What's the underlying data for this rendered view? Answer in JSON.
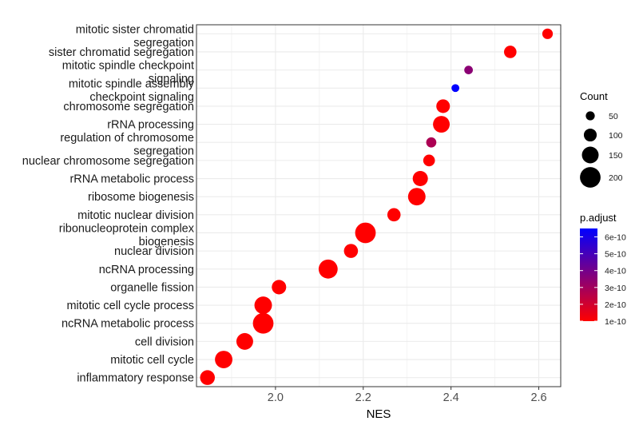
{
  "chart_data": {
    "type": "scatter",
    "xlabel": "NES",
    "ylabel": "",
    "xlim": [
      1.82,
      2.65
    ],
    "x_ticks": [
      2.0,
      2.2,
      2.4,
      2.6
    ],
    "x_tick_labels": [
      "2.0",
      "2.2",
      "2.4",
      "2.6"
    ],
    "grid": true,
    "legend_position": "right",
    "categories": [
      "mitotic sister chromatid\nsegregation",
      "sister chromatid segregation",
      "mitotic spindle checkpoint\nsignaling",
      "mitotic spindle assembly\ncheckpoint signaling",
      "chromosome segregation",
      "rRNA processing",
      "regulation of chromosome\nsegregation",
      "nuclear chromosome segregation",
      "rRNA metabolic process",
      "ribosome biogenesis",
      "mitotic nuclear division",
      "ribonucleoprotein complex\nbiogenesis",
      "nuclear division",
      "ncRNA processing",
      "organelle fission",
      "mitotic cell cycle process",
      "ncRNA metabolic process",
      "cell division",
      "mitotic cell cycle",
      "inflammatory response"
    ],
    "nes": [
      2.62,
      2.535,
      2.44,
      2.41,
      2.382,
      2.378,
      2.355,
      2.35,
      2.33,
      2.322,
      2.27,
      2.205,
      2.172,
      2.12,
      2.008,
      1.972,
      1.972,
      1.93,
      1.882,
      1.845
    ],
    "count": [
      70,
      95,
      45,
      35,
      110,
      150,
      65,
      85,
      130,
      160,
      105,
      200,
      115,
      180,
      120,
      160,
      200,
      150,
      160,
      125
    ],
    "p_adjust": [
      1e-10,
      1e-10,
      3.5e-10,
      6.5e-10,
      1e-10,
      1e-10,
      2.8e-10,
      1e-10,
      1e-10,
      1e-10,
      1e-10,
      1e-10,
      1e-10,
      1e-10,
      1e-10,
      1e-10,
      1e-10,
      1e-10,
      1e-10,
      1e-10
    ],
    "size_legend": {
      "title": "Count",
      "values": [
        50,
        100,
        150,
        200
      ],
      "labels": [
        "50",
        "100",
        "150",
        "200"
      ]
    },
    "color_legend": {
      "title": "p.adjust",
      "range": [
        1e-10,
        6.5e-10
      ],
      "low_color": "#ff0000",
      "high_color": "#0000ff",
      "ticks": [
        1e-10,
        2e-10,
        3e-10,
        4e-10,
        5e-10,
        6e-10
      ],
      "tick_labels": [
        "1e-10",
        "2e-10",
        "3e-10",
        "4e-10",
        "5e-10",
        "6e-10"
      ]
    }
  }
}
